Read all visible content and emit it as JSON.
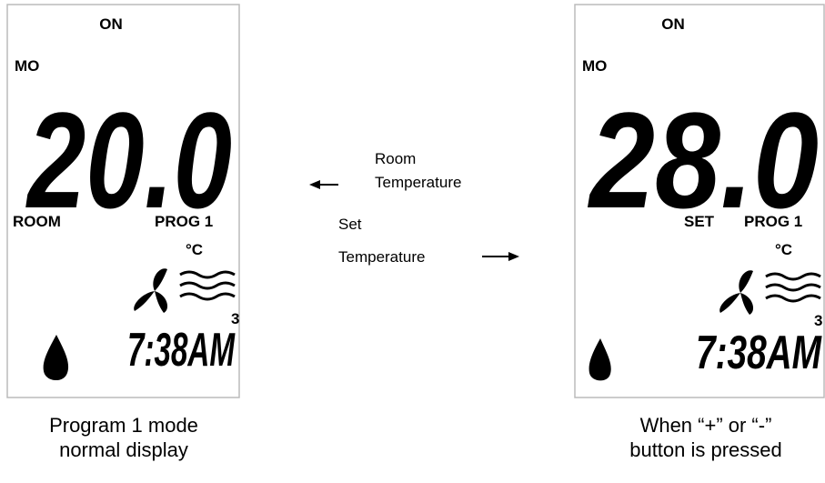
{
  "left_display": {
    "status": "ON",
    "day": "MO",
    "temperature": "20.0",
    "left_label": "ROOM",
    "program": "PROG 1",
    "unit": "°C",
    "fan_speed": "3",
    "time": "7:38AM",
    "caption": [
      "Program 1 mode",
      "normal display"
    ]
  },
  "annotations": {
    "room": [
      "Room",
      "Temperature"
    ],
    "set": [
      "Set",
      "Temperature"
    ]
  },
  "right_display": {
    "status": "ON",
    "day": "MO",
    "temperature": "28.0",
    "left_label": "SET",
    "program": "PROG 1",
    "unit": "°C",
    "fan_speed": "3",
    "time": "7:38AM",
    "caption": [
      "When “+” or “-”",
      "button is pressed"
    ]
  }
}
